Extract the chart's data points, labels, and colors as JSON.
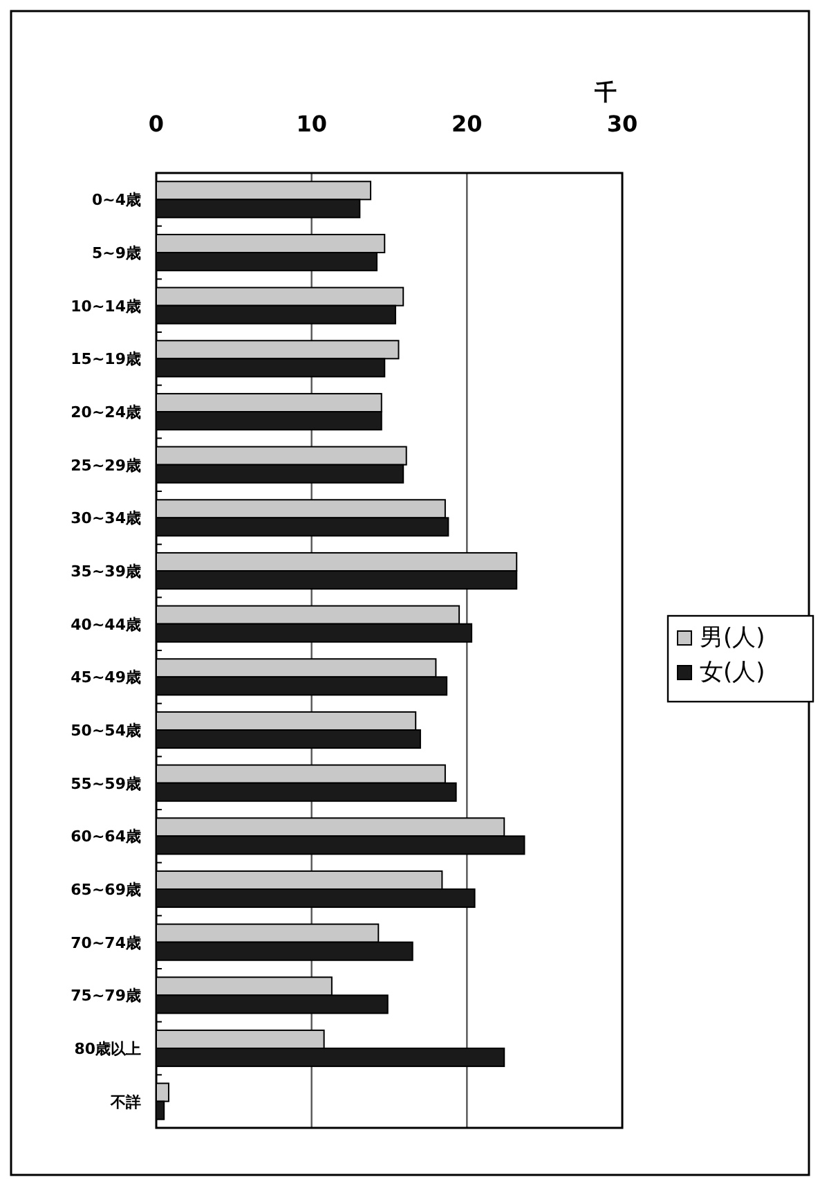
{
  "chart_data": {
    "type": "bar",
    "orientation": "horizontal",
    "xlabel": "千",
    "categories": [
      "0~4歳",
      "5~9歳",
      "10~14歳",
      "15~19歳",
      "20~24歳",
      "25~29歳",
      "30~34歳",
      "35~39歳",
      "40~44歳",
      "45~49歳",
      "50~54歳",
      "55~59歳",
      "60~64歳",
      "65~69歳",
      "70~74歳",
      "75~79歳",
      "80歳以上",
      "不詳"
    ],
    "series": [
      {
        "name": "男(人)",
        "color": "#c8c8c8",
        "values": [
          13.8,
          14.7,
          15.9,
          15.6,
          14.5,
          16.1,
          18.6,
          23.2,
          19.5,
          18.0,
          16.7,
          18.6,
          22.4,
          18.4,
          14.3,
          11.3,
          10.8,
          0.8
        ]
      },
      {
        "name": "女(人)",
        "color": "#1a1a1a",
        "values": [
          13.1,
          14.2,
          15.4,
          14.7,
          14.5,
          15.9,
          18.8,
          23.2,
          20.3,
          18.7,
          17.0,
          19.3,
          23.7,
          20.5,
          16.5,
          14.9,
          22.4,
          0.5
        ]
      }
    ],
    "xlim": [
      0,
      30
    ],
    "xticks": [
      0,
      10,
      20,
      30
    ],
    "grid": "x",
    "legend": "right"
  }
}
